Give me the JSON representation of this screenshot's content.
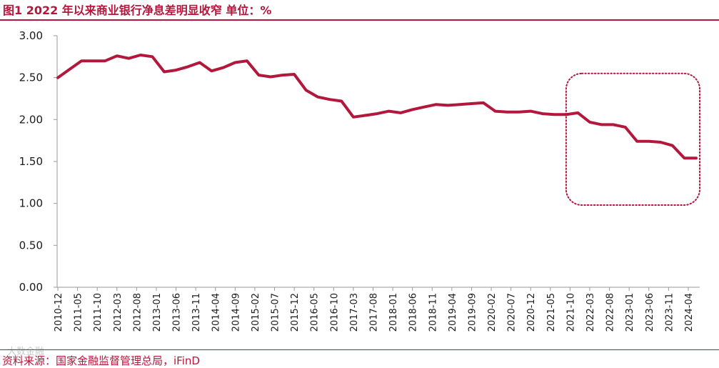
{
  "title": "图1  2022 年以来商业银行净息差明显收窄  单位：%",
  "source": "资料来源：国家金融监督管理总局，iFinD",
  "watermark": "大数金融",
  "colors": {
    "accent": "#b3173b",
    "line": "#b3173b",
    "axis": "#9a9a9a",
    "text": "#1a1a1a"
  },
  "chart_data": {
    "type": "line",
    "title": "",
    "xlabel": "",
    "ylabel": "",
    "ylim": [
      0,
      3
    ],
    "ytick_labels": [
      "0.00",
      "0.50",
      "1.00",
      "1.50",
      "2.00",
      "2.50",
      "3.00"
    ],
    "grid": false,
    "legend": "none",
    "x_tick_labels": [
      "2010-12",
      "2011-05",
      "2011-10",
      "2012-03",
      "2012-08",
      "2013-01",
      "2013-06",
      "2013-11",
      "2014-04",
      "2014-09",
      "2015-02",
      "2015-07",
      "2015-12",
      "2016-05",
      "2016-10",
      "2017-03",
      "2017-08",
      "2018-01",
      "2018-06",
      "2018-11",
      "2019-04",
      "2019-09",
      "2020-02",
      "2020-07",
      "2020-12",
      "2021-05",
      "2021-10",
      "2022-03",
      "2022-08",
      "2023-01",
      "2023-06",
      "2023-11",
      "2024-04"
    ],
    "x": [
      "2010-12",
      "2011-03",
      "2011-06",
      "2011-09",
      "2011-12",
      "2012-03",
      "2012-06",
      "2012-09",
      "2012-12",
      "2013-03",
      "2013-06",
      "2013-09",
      "2013-12",
      "2014-03",
      "2014-06",
      "2014-09",
      "2014-12",
      "2015-03",
      "2015-06",
      "2015-09",
      "2015-12",
      "2016-03",
      "2016-06",
      "2016-09",
      "2016-12",
      "2017-03",
      "2017-06",
      "2017-09",
      "2017-12",
      "2018-03",
      "2018-06",
      "2018-09",
      "2018-12",
      "2019-03",
      "2019-06",
      "2019-09",
      "2019-12",
      "2020-03",
      "2020-06",
      "2020-09",
      "2020-12",
      "2021-03",
      "2021-06",
      "2021-09",
      "2021-12",
      "2022-03",
      "2022-06",
      "2022-09",
      "2022-12",
      "2023-03",
      "2023-06",
      "2023-09",
      "2023-12",
      "2024-03",
      "2024-06"
    ],
    "series": [
      {
        "values": [
          2.5,
          2.6,
          2.7,
          2.7,
          2.7,
          2.76,
          2.73,
          2.77,
          2.75,
          2.57,
          2.59,
          2.63,
          2.68,
          2.58,
          2.62,
          2.68,
          2.7,
          2.53,
          2.51,
          2.53,
          2.54,
          2.35,
          2.27,
          2.24,
          2.22,
          2.03,
          2.05,
          2.07,
          2.1,
          2.08,
          2.12,
          2.15,
          2.18,
          2.17,
          2.18,
          2.19,
          2.2,
          2.1,
          2.09,
          2.09,
          2.1,
          2.07,
          2.06,
          2.06,
          2.08,
          1.97,
          1.94,
          1.94,
          1.91,
          1.74,
          1.74,
          1.73,
          1.69,
          1.54,
          1.54
        ]
      }
    ],
    "annotations": [
      {
        "type": "dotted-rounded-rectangle",
        "x_range": [
          "2021-09",
          "2024-06"
        ],
        "y_range": [
          0.98,
          2.55
        ]
      }
    ]
  }
}
